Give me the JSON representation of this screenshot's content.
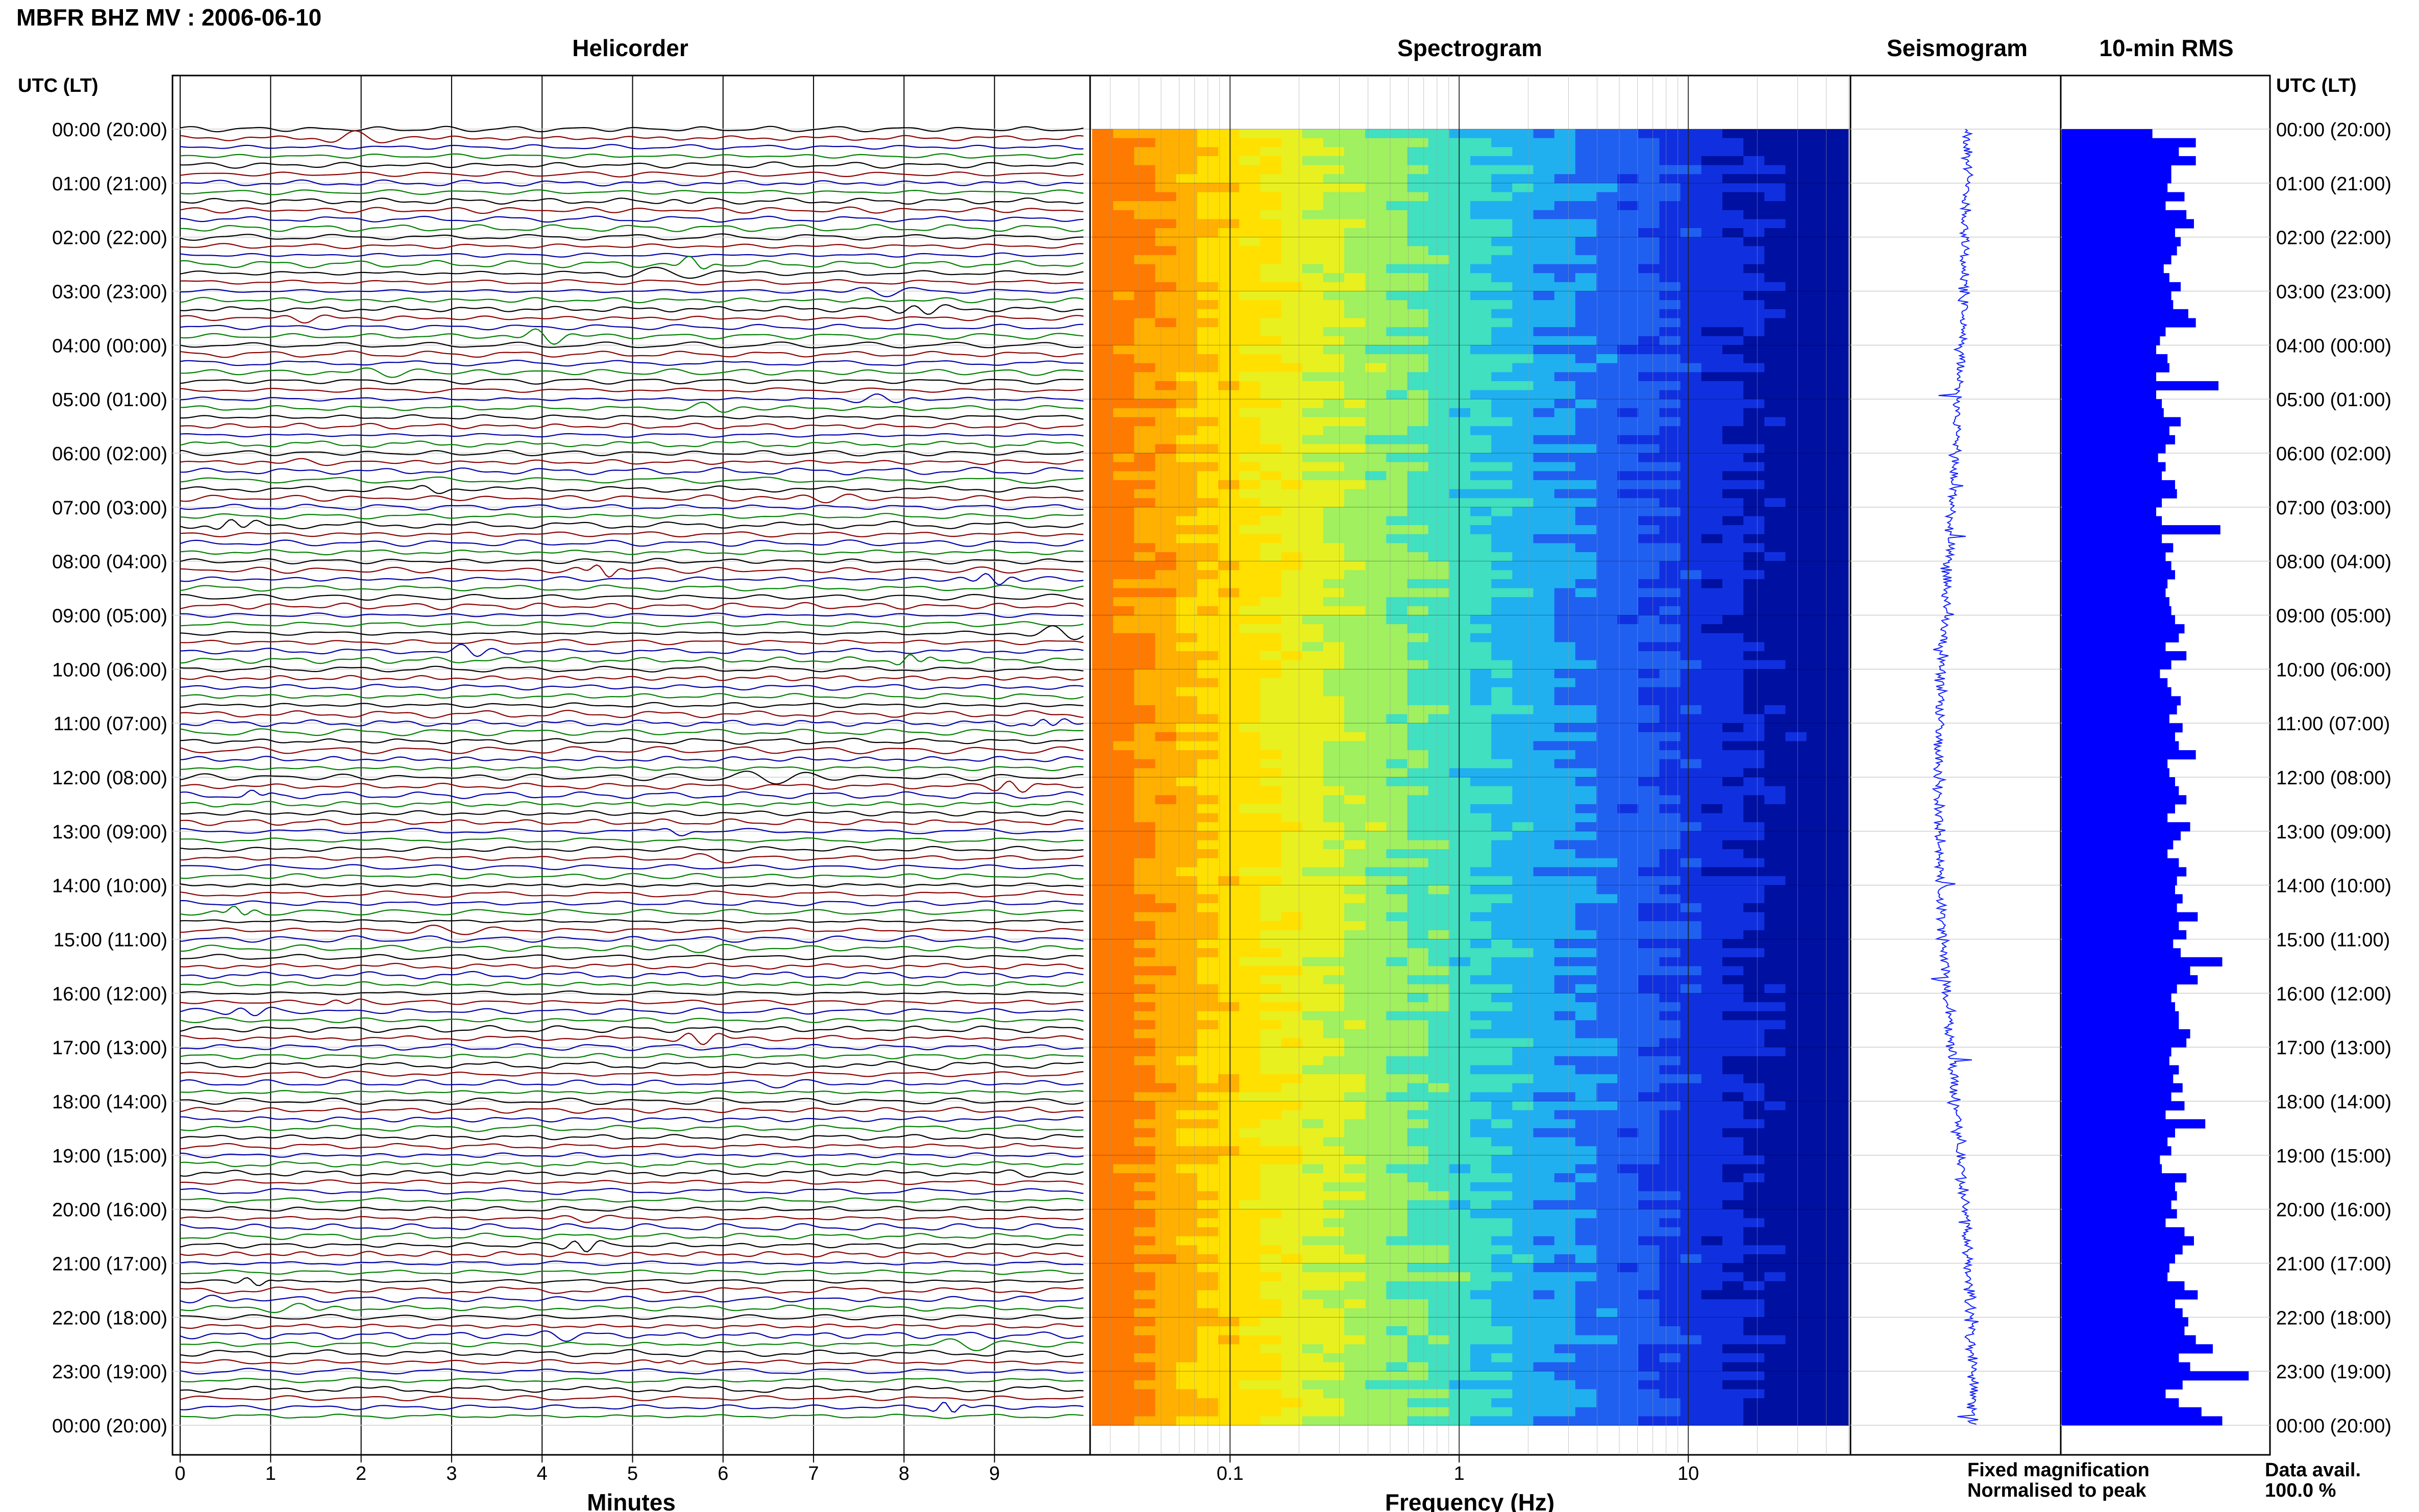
{
  "header": {
    "station_title": "MBFR BHZ MV : 2006-06-10",
    "panel_titles": {
      "helicorder": "Helicorder",
      "spectrogram": "Spectrogram",
      "seismogram": "Seismogram",
      "rms": "10-min RMS"
    },
    "time_axis_label": "UTC (LT)"
  },
  "time_labels": [
    "00:00 (20:00)",
    "01:00 (21:00)",
    "02:00 (22:00)",
    "03:00 (23:00)",
    "04:00 (00:00)",
    "05:00 (01:00)",
    "06:00 (02:00)",
    "07:00 (03:00)",
    "08:00 (04:00)",
    "09:00 (05:00)",
    "10:00 (06:00)",
    "11:00 (07:00)",
    "12:00 (08:00)",
    "13:00 (09:00)",
    "14:00 (10:00)",
    "15:00 (11:00)",
    "16:00 (12:00)",
    "17:00 (13:00)",
    "18:00 (14:00)",
    "19:00 (15:00)",
    "20:00 (16:00)",
    "21:00 (17:00)",
    "22:00 (18:00)",
    "23:00 (19:00)",
    "00:00 (20:00)"
  ],
  "helicorder": {
    "xlabel": "Minutes",
    "xticks": [
      "0",
      "1",
      "2",
      "3",
      "4",
      "5",
      "6",
      "7",
      "8",
      "9"
    ],
    "xlim": [
      0,
      10
    ],
    "trace_colors": [
      "#000000",
      "#8b0000",
      "#0000aa",
      "#008000"
    ],
    "rows_per_hour": 6
  },
  "spectrogram": {
    "xlabel": "Frequency (Hz)",
    "xticks": [
      "0.1",
      "1",
      "10"
    ],
    "xscale": "log",
    "xlim": [
      0.025,
      50
    ],
    "colormap": [
      "#ff7a00",
      "#ffb000",
      "#ffe000",
      "#e8f020",
      "#a0f060",
      "#40e0c0",
      "#20b0f0",
      "#2060f0",
      "#1030e0",
      "#0010a0"
    ]
  },
  "seismogram": {
    "trace_color": "#1020ff"
  },
  "chart_data": {
    "type": "bar",
    "title": "10-min RMS",
    "orientation": "horizontal",
    "categories_note": "144 ten-minute windows from 00:00 to 24:00 UTC",
    "bar_color": "#0000ff",
    "values": [
      0.48,
      0.71,
      0.62,
      0.71,
      0.58,
      0.58,
      0.56,
      0.65,
      0.55,
      0.66,
      0.7,
      0.6,
      0.63,
      0.61,
      0.58,
      0.54,
      0.57,
      0.63,
      0.58,
      0.59,
      0.67,
      0.71,
      0.55,
      0.52,
      0.5,
      0.56,
      0.57,
      0.5,
      0.83,
      0.5,
      0.53,
      0.54,
      0.63,
      0.57,
      0.6,
      0.55,
      0.51,
      0.55,
      0.53,
      0.6,
      0.61,
      0.53,
      0.5,
      0.53,
      0.84,
      0.53,
      0.59,
      0.55,
      0.58,
      0.6,
      0.56,
      0.55,
      0.57,
      0.58,
      0.6,
      0.65,
      0.62,
      0.55,
      0.66,
      0.58,
      0.52,
      0.56,
      0.58,
      0.63,
      0.61,
      0.57,
      0.64,
      0.6,
      0.62,
      0.71,
      0.56,
      0.57,
      0.6,
      0.62,
      0.66,
      0.6,
      0.56,
      0.68,
      0.63,
      0.59,
      0.56,
      0.62,
      0.66,
      0.61,
      0.6,
      0.64,
      0.61,
      0.72,
      0.62,
      0.66,
      0.59,
      0.63,
      0.85,
      0.68,
      0.72,
      0.61,
      0.58,
      0.6,
      0.62,
      0.62,
      0.68,
      0.66,
      0.58,
      0.57,
      0.62,
      0.59,
      0.64,
      0.58,
      0.65,
      0.55,
      0.76,
      0.6,
      0.56,
      0.58,
      0.52,
      0.53,
      0.66,
      0.6,
      0.61,
      0.58,
      0.61,
      0.55,
      0.65,
      0.7,
      0.64,
      0.6,
      0.57,
      0.56,
      0.65,
      0.72,
      0.6,
      0.64,
      0.67,
      0.65,
      0.71,
      0.8,
      0.62,
      0.68,
      0.99,
      0.64,
      0.55,
      0.62,
      0.74,
      0.85
    ]
  },
  "legend": {
    "fixed_magnification": "Fixed magnification",
    "fixed_color": "#0000ff",
    "normalised": "Normalised to peak",
    "normalised_color": "#ff0000"
  },
  "data_availability": {
    "label": "Data avail.",
    "value": "100.0 %"
  }
}
